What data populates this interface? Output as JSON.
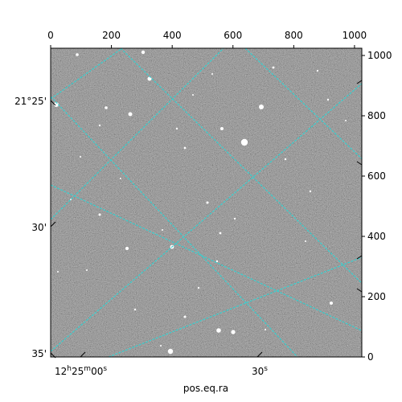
{
  "figure": {
    "xlabel": "pos.eq.ra",
    "top_ticks": [
      "0",
      "200",
      "400",
      "600",
      "800",
      "1000"
    ],
    "top_tick_values": [
      0,
      200,
      400,
      600,
      800,
      1000
    ],
    "right_ticks": [
      "0",
      "200",
      "400",
      "600",
      "800",
      "1000"
    ],
    "right_tick_values": [
      0,
      200,
      400,
      600,
      800,
      1000
    ],
    "dec_labels": [
      {
        "main": "21°25'"
      },
      {
        "main": "30'"
      },
      {
        "main": "35'"
      }
    ],
    "ra_labels": [
      {
        "h": "12",
        "m": "25",
        "s": "00",
        "text": "12h25m00s"
      },
      {
        "s": "30",
        "text": "30s"
      }
    ],
    "grid_color": "#36d0d0",
    "image_background": "#6e6e6e"
  }
}
